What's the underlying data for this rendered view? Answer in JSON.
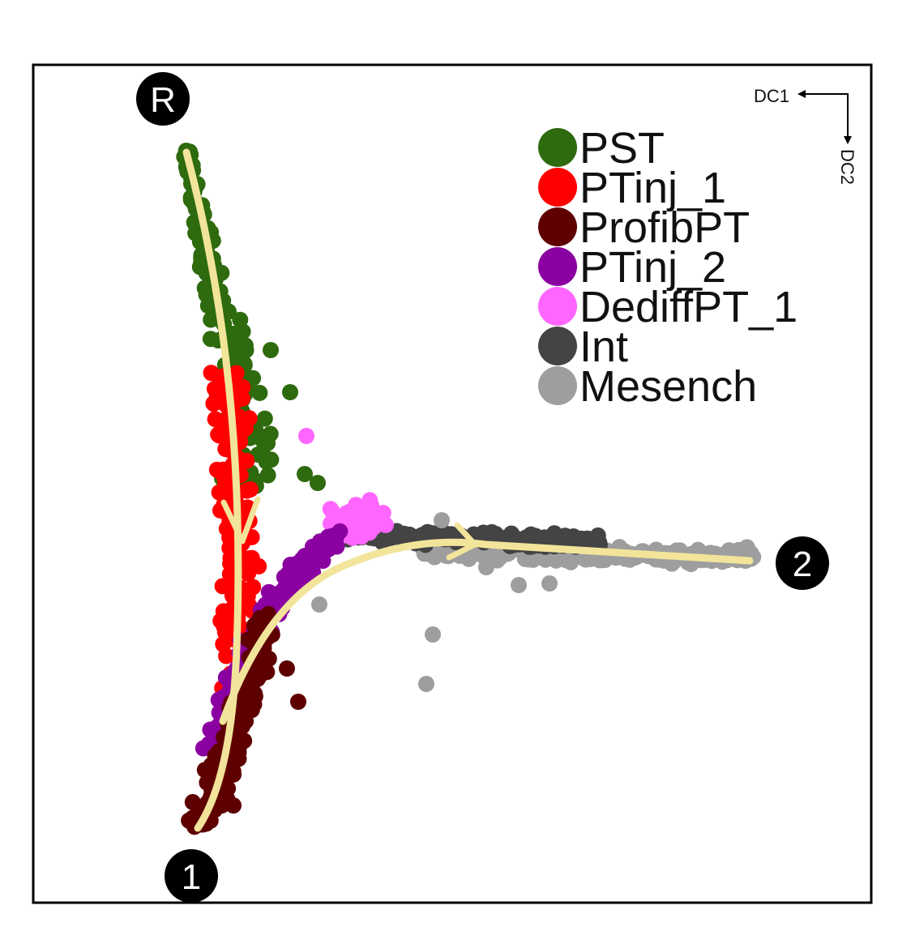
{
  "chart_data": {
    "type": "scatter",
    "title": "",
    "xlabel": "DC1",
    "ylabel": "DC2",
    "axis_orientation": "reversed (arrows point left for DC1, down for DC2)",
    "grid": false,
    "legend_position": "top-right",
    "series": [
      {
        "name": "PST",
        "color": "#2e6a0e"
      },
      {
        "name": "PTinj_1",
        "color": "#ff0000"
      },
      {
        "name": "ProfibPT",
        "color": "#5e0000"
      },
      {
        "name": "PTinj_2",
        "color": "#8b00a0"
      },
      {
        "name": "DediffPT_1",
        "color": "#ff66ff"
      },
      {
        "name": "Int",
        "color": "#444444"
      },
      {
        "name": "Mesench",
        "color": "#9e9e9e"
      }
    ],
    "trajectory_nodes": [
      {
        "label": "R"
      },
      {
        "label": "1"
      },
      {
        "label": "2"
      }
    ],
    "trajectory_color": "#f2e49a"
  }
}
